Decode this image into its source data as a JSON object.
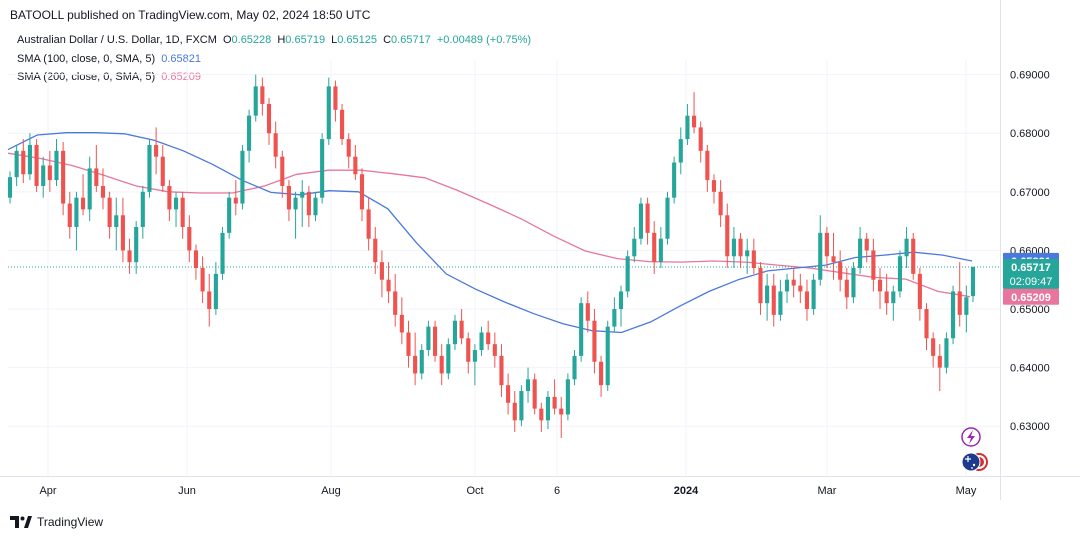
{
  "header": {
    "published": "BATOOLL published on TradingView.com, May 02, 2024 18:50 UTC"
  },
  "legend": {
    "symbol": "Australian Dollar / U.S. Dollar, 1D, FXCM",
    "open_label": "O",
    "open": "0.65228",
    "high_label": "H",
    "high": "0.65719",
    "low_label": "L",
    "low": "0.65125",
    "close_label": "C",
    "close": "0.65717",
    "change": "+0.00489 (+0.75%)",
    "sma100_label": "SMA (100, close, 0, SMA, 5)",
    "sma100_value": "0.65821",
    "sma200_label": "SMA (200, close, 0, SMA, 5)",
    "sma200_value": "0.65209"
  },
  "price_badges": {
    "sma100": "0.65821",
    "last": "0.65717",
    "countdown": "02:09:47",
    "sma200": "0.65209"
  },
  "footer": {
    "brand": "TradingView"
  },
  "colors": {
    "up": "#26a69a",
    "down": "#ef5350",
    "sma100": "#4a78dd",
    "sma200": "#e8769c",
    "grid": "#f0f3fa",
    "axis_text": "#131722",
    "price_line": "#26a69a"
  },
  "icons": [
    "lightning-icon",
    "flag-au-icon",
    "flag-us-icon",
    "tradingview-logo-icon"
  ],
  "chart_data": {
    "type": "candlestick",
    "symbol": "AUDUSD",
    "timeframe": "1D",
    "x_ticks": [
      "Apr",
      "Jun",
      "Aug",
      "Oct",
      "6",
      "2024",
      "Mar",
      "May"
    ],
    "y_ticks": [
      "0.69000",
      "0.68000",
      "0.67000",
      "0.66000",
      "0.65000",
      "0.64000",
      "0.63000"
    ],
    "ylim": [
      0.6215,
      0.6925
    ],
    "grid": true,
    "candles": [
      [
        0.669,
        0.6735,
        0.668,
        0.6725
      ],
      [
        0.6725,
        0.678,
        0.671,
        0.677
      ],
      [
        0.677,
        0.679,
        0.6715,
        0.673
      ],
      [
        0.673,
        0.68,
        0.672,
        0.678
      ],
      [
        0.678,
        0.679,
        0.67,
        0.671
      ],
      [
        0.671,
        0.676,
        0.669,
        0.6745
      ],
      [
        0.6745,
        0.677,
        0.67,
        0.672
      ],
      [
        0.672,
        0.679,
        0.671,
        0.677
      ],
      [
        0.677,
        0.6785,
        0.666,
        0.668
      ],
      [
        0.668,
        0.67,
        0.662,
        0.664
      ],
      [
        0.664,
        0.67,
        0.66,
        0.669
      ],
      [
        0.669,
        0.673,
        0.666,
        0.667
      ],
      [
        0.667,
        0.676,
        0.665,
        0.674
      ],
      [
        0.674,
        0.678,
        0.67,
        0.671
      ],
      [
        0.671,
        0.674,
        0.667,
        0.669
      ],
      [
        0.669,
        0.67,
        0.662,
        0.664
      ],
      [
        0.664,
        0.669,
        0.66,
        0.666
      ],
      [
        0.666,
        0.669,
        0.658,
        0.66
      ],
      [
        0.66,
        0.662,
        0.656,
        0.658
      ],
      [
        0.658,
        0.665,
        0.656,
        0.664
      ],
      [
        0.664,
        0.671,
        0.662,
        0.67
      ],
      [
        0.67,
        0.679,
        0.669,
        0.678
      ],
      [
        0.678,
        0.681,
        0.673,
        0.676
      ],
      [
        0.676,
        0.678,
        0.67,
        0.671
      ],
      [
        0.671,
        0.672,
        0.665,
        0.667
      ],
      [
        0.667,
        0.67,
        0.664,
        0.669
      ],
      [
        0.669,
        0.67,
        0.662,
        0.664
      ],
      [
        0.664,
        0.666,
        0.658,
        0.66
      ],
      [
        0.66,
        0.661,
        0.655,
        0.657
      ],
      [
        0.657,
        0.659,
        0.651,
        0.653
      ],
      [
        0.653,
        0.656,
        0.647,
        0.65
      ],
      [
        0.65,
        0.658,
        0.649,
        0.656
      ],
      [
        0.656,
        0.664,
        0.655,
        0.663
      ],
      [
        0.663,
        0.67,
        0.662,
        0.669
      ],
      [
        0.669,
        0.672,
        0.666,
        0.668
      ],
      [
        0.668,
        0.678,
        0.667,
        0.677
      ],
      [
        0.677,
        0.684,
        0.675,
        0.683
      ],
      [
        0.683,
        0.69,
        0.682,
        0.688
      ],
      [
        0.688,
        0.6895,
        0.683,
        0.685
      ],
      [
        0.685,
        0.686,
        0.678,
        0.68
      ],
      [
        0.68,
        0.682,
        0.674,
        0.676
      ],
      [
        0.676,
        0.677,
        0.669,
        0.671
      ],
      [
        0.671,
        0.672,
        0.665,
        0.667
      ],
      [
        0.667,
        0.67,
        0.662,
        0.669
      ],
      [
        0.669,
        0.672,
        0.664,
        0.67
      ],
      [
        0.67,
        0.671,
        0.664,
        0.666
      ],
      [
        0.666,
        0.67,
        0.665,
        0.669
      ],
      [
        0.669,
        0.68,
        0.668,
        0.679
      ],
      [
        0.679,
        0.6895,
        0.678,
        0.688
      ],
      [
        0.688,
        0.689,
        0.682,
        0.684
      ],
      [
        0.684,
        0.685,
        0.678,
        0.679
      ],
      [
        0.679,
        0.68,
        0.674,
        0.676
      ],
      [
        0.676,
        0.678,
        0.672,
        0.673
      ],
      [
        0.673,
        0.674,
        0.665,
        0.667
      ],
      [
        0.667,
        0.669,
        0.66,
        0.662
      ],
      [
        0.662,
        0.664,
        0.656,
        0.658
      ],
      [
        0.658,
        0.66,
        0.652,
        0.655
      ],
      [
        0.655,
        0.658,
        0.651,
        0.653
      ],
      [
        0.653,
        0.656,
        0.647,
        0.649
      ],
      [
        0.649,
        0.652,
        0.644,
        0.646
      ],
      [
        0.646,
        0.648,
        0.64,
        0.642
      ],
      [
        0.642,
        0.646,
        0.637,
        0.639
      ],
      [
        0.639,
        0.644,
        0.638,
        0.643
      ],
      [
        0.643,
        0.648,
        0.642,
        0.647
      ],
      [
        0.647,
        0.648,
        0.641,
        0.642
      ],
      [
        0.642,
        0.644,
        0.637,
        0.639
      ],
      [
        0.639,
        0.645,
        0.638,
        0.644
      ],
      [
        0.644,
        0.649,
        0.643,
        0.648
      ],
      [
        0.648,
        0.65,
        0.644,
        0.645
      ],
      [
        0.645,
        0.646,
        0.639,
        0.641
      ],
      [
        0.641,
        0.644,
        0.637,
        0.643
      ],
      [
        0.643,
        0.647,
        0.642,
        0.646
      ],
      [
        0.646,
        0.648,
        0.643,
        0.644
      ],
      [
        0.644,
        0.646,
        0.64,
        0.642
      ],
      [
        0.642,
        0.644,
        0.635,
        0.637
      ],
      [
        0.637,
        0.639,
        0.632,
        0.634
      ],
      [
        0.634,
        0.636,
        0.629,
        0.631
      ],
      [
        0.631,
        0.637,
        0.63,
        0.636
      ],
      [
        0.636,
        0.64,
        0.634,
        0.638
      ],
      [
        0.638,
        0.639,
        0.632,
        0.633
      ],
      [
        0.633,
        0.634,
        0.629,
        0.631
      ],
      [
        0.631,
        0.636,
        0.6295,
        0.635
      ],
      [
        0.635,
        0.638,
        0.632,
        0.633
      ],
      [
        0.633,
        0.635,
        0.628,
        0.632
      ],
      [
        0.632,
        0.639,
        0.631,
        0.638
      ],
      [
        0.638,
        0.643,
        0.637,
        0.642
      ],
      [
        0.642,
        0.652,
        0.641,
        0.651
      ],
      [
        0.651,
        0.653,
        0.646,
        0.648
      ],
      [
        0.648,
        0.65,
        0.639,
        0.641
      ],
      [
        0.641,
        0.642,
        0.635,
        0.637
      ],
      [
        0.637,
        0.648,
        0.636,
        0.647
      ],
      [
        0.647,
        0.652,
        0.646,
        0.65
      ],
      [
        0.65,
        0.654,
        0.647,
        0.653
      ],
      [
        0.653,
        0.66,
        0.652,
        0.659
      ],
      [
        0.659,
        0.664,
        0.658,
        0.662
      ],
      [
        0.662,
        0.669,
        0.661,
        0.668
      ],
      [
        0.668,
        0.669,
        0.661,
        0.663
      ],
      [
        0.663,
        0.665,
        0.656,
        0.658
      ],
      [
        0.658,
        0.664,
        0.657,
        0.662
      ],
      [
        0.662,
        0.67,
        0.661,
        0.669
      ],
      [
        0.669,
        0.676,
        0.668,
        0.675
      ],
      [
        0.675,
        0.681,
        0.673,
        0.679
      ],
      [
        0.679,
        0.685,
        0.678,
        0.683
      ],
      [
        0.683,
        0.687,
        0.68,
        0.681
      ],
      [
        0.681,
        0.682,
        0.675,
        0.677
      ],
      [
        0.677,
        0.678,
        0.67,
        0.672
      ],
      [
        0.672,
        0.673,
        0.668,
        0.67
      ],
      [
        0.67,
        0.672,
        0.664,
        0.666
      ],
      [
        0.666,
        0.668,
        0.657,
        0.659
      ],
      [
        0.659,
        0.664,
        0.657,
        0.662
      ],
      [
        0.662,
        0.663,
        0.657,
        0.659
      ],
      [
        0.659,
        0.662,
        0.656,
        0.66
      ],
      [
        0.66,
        0.662,
        0.656,
        0.657
      ],
      [
        0.657,
        0.658,
        0.649,
        0.651
      ],
      [
        0.651,
        0.656,
        0.648,
        0.654
      ],
      [
        0.654,
        0.656,
        0.647,
        0.649
      ],
      [
        0.649,
        0.655,
        0.648,
        0.653
      ],
      [
        0.653,
        0.656,
        0.651,
        0.655
      ],
      [
        0.655,
        0.657,
        0.652,
        0.654
      ],
      [
        0.654,
        0.656,
        0.651,
        0.653
      ],
      [
        0.653,
        0.655,
        0.648,
        0.65
      ],
      [
        0.65,
        0.656,
        0.649,
        0.655
      ],
      [
        0.655,
        0.666,
        0.654,
        0.663
      ],
      [
        0.663,
        0.664,
        0.657,
        0.659
      ],
      [
        0.659,
        0.663,
        0.655,
        0.658
      ],
      [
        0.658,
        0.66,
        0.653,
        0.655
      ],
      [
        0.655,
        0.657,
        0.65,
        0.652
      ],
      [
        0.652,
        0.658,
        0.651,
        0.657
      ],
      [
        0.657,
        0.664,
        0.656,
        0.662
      ],
      [
        0.662,
        0.663,
        0.658,
        0.66
      ],
      [
        0.66,
        0.662,
        0.653,
        0.655
      ],
      [
        0.655,
        0.657,
        0.65,
        0.653
      ],
      [
        0.653,
        0.656,
        0.649,
        0.651
      ],
      [
        0.651,
        0.654,
        0.648,
        0.653
      ],
      [
        0.653,
        0.66,
        0.652,
        0.659
      ],
      [
        0.659,
        0.664,
        0.657,
        0.662
      ],
      [
        0.662,
        0.663,
        0.655,
        0.656
      ],
      [
        0.656,
        0.657,
        0.648,
        0.65
      ],
      [
        0.65,
        0.651,
        0.643,
        0.645
      ],
      [
        0.645,
        0.646,
        0.64,
        0.642
      ],
      [
        0.642,
        0.644,
        0.636,
        0.64
      ],
      [
        0.64,
        0.646,
        0.639,
        0.645
      ],
      [
        0.645,
        0.654,
        0.644,
        0.653
      ],
      [
        0.653,
        0.658,
        0.647,
        0.649
      ],
      [
        0.649,
        0.654,
        0.646,
        0.652
      ],
      [
        0.6522,
        0.6572,
        0.6512,
        0.6572
      ]
    ],
    "sma100_series": {
      "name": "SMA (100, close, 0, SMA, 5)",
      "values": [
        0.6772,
        0.6797,
        0.6801,
        0.6801,
        0.6799,
        0.6788,
        0.677,
        0.6747,
        0.672,
        0.6699,
        0.6695,
        0.6702,
        0.67,
        0.6671,
        0.6612,
        0.656,
        0.6534,
        0.6512,
        0.6492,
        0.6475,
        0.6463,
        0.646,
        0.6478,
        0.6505,
        0.653,
        0.655,
        0.6565,
        0.657,
        0.6575,
        0.6588,
        0.6592,
        0.6597,
        0.6592,
        0.6582
      ]
    },
    "sma200_series": {
      "name": "SMA (200, close, 0, SMA, 5)",
      "values": [
        0.6766,
        0.6757,
        0.6745,
        0.6728,
        0.671,
        0.67,
        0.6698,
        0.6698,
        0.671,
        0.673,
        0.6737,
        0.6737,
        0.6731,
        0.6724,
        0.6703,
        0.6679,
        0.6654,
        0.6625,
        0.6599,
        0.6586,
        0.6581,
        0.658,
        0.6582,
        0.658,
        0.6575,
        0.657,
        0.6562,
        0.6554,
        0.6551,
        0.653,
        0.6521
      ]
    },
    "last_price": 0.65717
  }
}
